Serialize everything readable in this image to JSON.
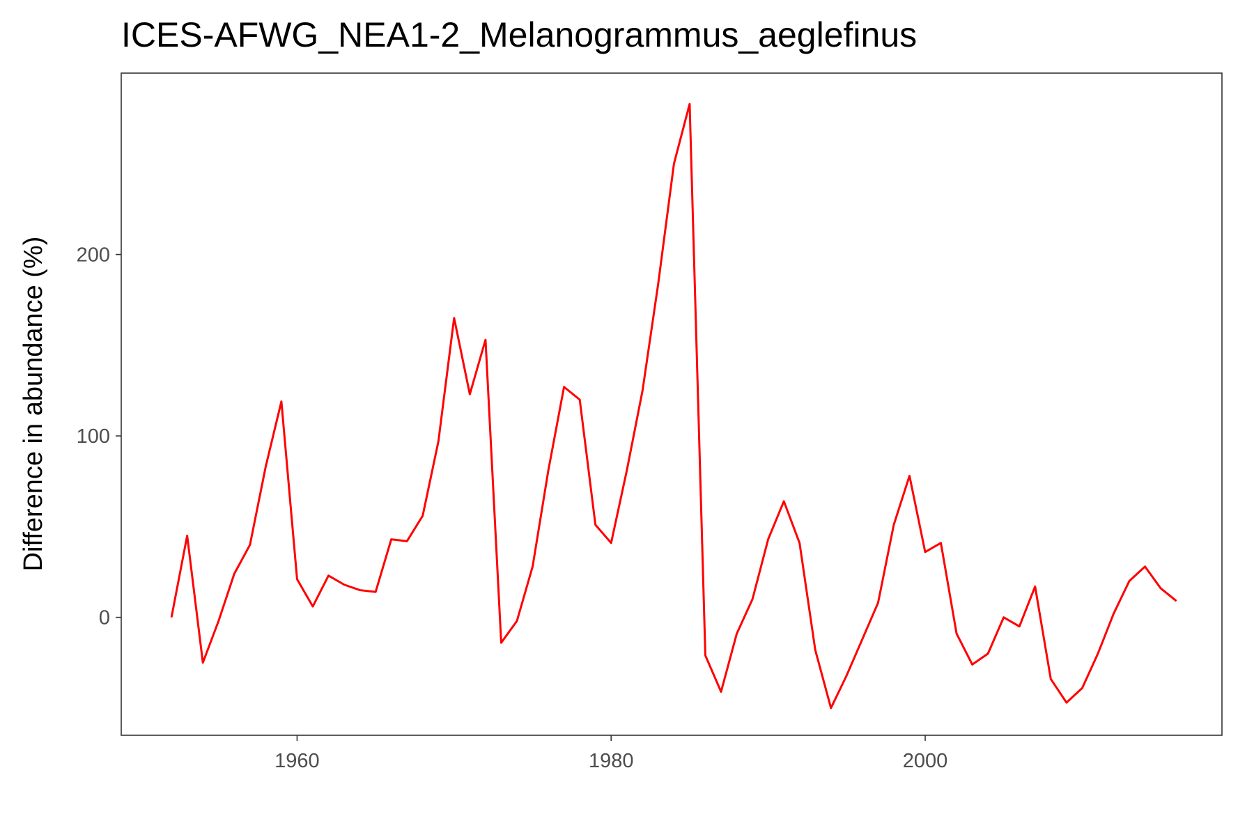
{
  "chart_data": {
    "type": "line",
    "title": "ICES-AFWG_NEA1-2_Melanogrammus_aeglefinus",
    "xlabel": "",
    "ylabel": "Difference in abundance (%)",
    "xlim": [
      1948.8,
      2018.9
    ],
    "ylim": [
      -65,
      300
    ],
    "x_ticks": [
      1960,
      1980,
      2000
    ],
    "y_ticks": [
      0,
      100,
      200
    ],
    "grid": false,
    "legend": "none",
    "line_color": "#ff0000",
    "series": [
      {
        "x": [
          1952,
          1953,
          1954,
          1955,
          1956,
          1957,
          1958,
          1959,
          1960,
          1961,
          1962,
          1963,
          1964,
          1965,
          1966,
          1967,
          1968,
          1969,
          1970,
          1971,
          1972,
          1973,
          1974,
          1975,
          1976,
          1977,
          1978,
          1979,
          1980,
          1981,
          1982,
          1983,
          1984,
          1985,
          1986,
          1987,
          1988,
          1989,
          1990,
          1991,
          1992,
          1993,
          1994,
          1995,
          1996,
          1997,
          1998,
          1999,
          2000,
          2001,
          2002,
          2003,
          2004,
          2005,
          2006,
          2007,
          2008,
          2009,
          2010,
          2011,
          2012,
          2013,
          2014,
          2015,
          2016
        ],
        "values": [
          0,
          45,
          -25,
          -2,
          24,
          40,
          83,
          119,
          21,
          6,
          23,
          18,
          15,
          14,
          43,
          42,
          56,
          97,
          165,
          123,
          153,
          -14,
          -2,
          28,
          81,
          127,
          120,
          51,
          41,
          81,
          125,
          184,
          250,
          283,
          -21,
          -41,
          -9,
          10,
          43,
          64,
          41,
          -18,
          -50,
          -32,
          -12,
          8,
          51,
          78,
          36,
          41,
          -9,
          -26,
          -20,
          0,
          -5,
          17,
          -34,
          -47,
          -39,
          -20,
          2,
          20,
          28,
          16,
          9
        ]
      }
    ]
  }
}
